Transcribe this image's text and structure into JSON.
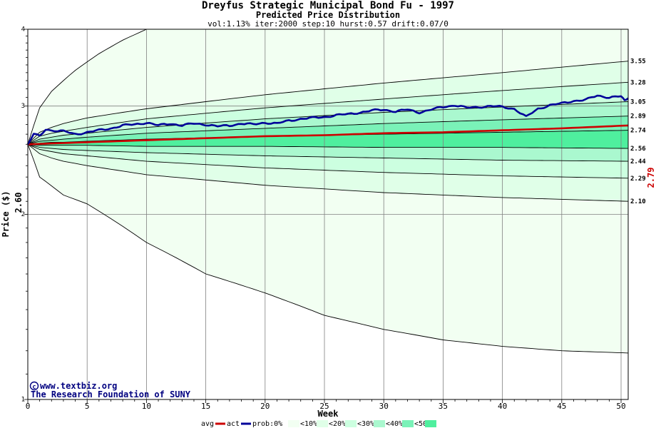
{
  "chart_data": {
    "type": "line",
    "title": "Dreyfus Strategic Municipal Bond Fu - 1997",
    "subtitle": "Predicted Price Distribution",
    "params": "vol:1.13% iter:2000 step:10 hurst:0.57 drift:0.07/0",
    "xlabel": "Week",
    "ylabel": "Price ($)",
    "y_scale": "log",
    "xlim": [
      0,
      50.6
    ],
    "ylim": [
      1,
      4
    ],
    "x_ticks": [
      0,
      5,
      10,
      15,
      20,
      25,
      30,
      35,
      40,
      45,
      50
    ],
    "y_ticks": [
      1,
      2,
      3,
      4
    ],
    "start_price_label": "2.60",
    "end_avg_label": "2.79",
    "grid": true,
    "colors": {
      "background": "#ffffff",
      "band_outer": "#f2fff2",
      "band_10": "#e0ffe8",
      "band_20": "#ccffe0",
      "band_30": "#aaf8cf",
      "band_40": "#7af2b8",
      "band_50": "#4fef9e",
      "avg_line": "#cc0000",
      "actual_line": "#000099",
      "percentile_line": "#000000",
      "grid_line": "#808080",
      "end_avg_label_color": "#cc0000",
      "credit_text": "#000080"
    },
    "percentile_end_labels": [
      "3.55",
      "3.28",
      "3.05",
      "2.89",
      "2.74",
      "2.56",
      "2.44",
      "2.29",
      "2.10"
    ],
    "percentile_curves": [
      {
        "values_at_week": {
          "1": 2.72,
          "2": 2.77,
          "3": 2.81,
          "5": 2.87,
          "10": 2.97,
          "20": 3.13,
          "30": 3.27,
          "40": 3.4,
          "50.6": 3.55
        }
      },
      {
        "values_at_week": {
          "1": 2.68,
          "2": 2.71,
          "3": 2.73,
          "5": 2.77,
          "10": 2.86,
          "20": 2.98,
          "30": 3.08,
          "40": 3.18,
          "50.6": 3.28
        }
      },
      {
        "values_at_week": {
          "1": 2.65,
          "2": 2.67,
          "3": 2.69,
          "5": 2.71,
          "10": 2.77,
          "20": 2.86,
          "30": 2.93,
          "40": 2.99,
          "50.6": 3.05
        }
      },
      {
        "values_at_week": {
          "1": 2.63,
          "2": 2.64,
          "3": 2.65,
          "5": 2.67,
          "10": 2.71,
          "20": 2.76,
          "30": 2.81,
          "40": 2.85,
          "50.6": 2.89
        }
      },
      {
        "values_at_week": {
          "1": 2.61,
          "2": 2.62,
          "3": 2.62,
          "5": 2.63,
          "10": 2.65,
          "20": 2.68,
          "30": 2.7,
          "40": 2.72,
          "50.6": 2.74
        }
      },
      {
        "values_at_week": {
          "1": 2.59,
          "2": 2.59,
          "3": 2.59,
          "5": 2.59,
          "10": 2.58,
          "20": 2.58,
          "30": 2.57,
          "40": 2.57,
          "50.6": 2.56
        }
      },
      {
        "values_at_week": {
          "1": 2.57,
          "2": 2.56,
          "3": 2.55,
          "5": 2.54,
          "10": 2.52,
          "20": 2.49,
          "30": 2.47,
          "40": 2.45,
          "50.6": 2.44
        }
      },
      {
        "values_at_week": {
          "1": 2.55,
          "2": 2.53,
          "3": 2.51,
          "5": 2.49,
          "10": 2.44,
          "20": 2.38,
          "30": 2.34,
          "40": 2.31,
          "50.6": 2.29
        }
      },
      {
        "values_at_week": {
          "1": 2.51,
          "2": 2.47,
          "3": 2.44,
          "5": 2.4,
          "10": 2.32,
          "20": 2.23,
          "30": 2.17,
          "40": 2.13,
          "50.6": 2.1
        }
      }
    ],
    "outer_upper_curve": {
      "values_at_week": {
        "0": 2.6,
        "1": 2.98,
        "2": 3.17,
        "4": 3.43,
        "6": 3.65,
        "8": 3.84,
        "10": 4.0
      }
    },
    "outer_lower_curve": {
      "values_at_week": {
        "0": 2.6,
        "1": 2.3,
        "3": 2.15,
        "5": 2.08,
        "10": 1.8,
        "15": 1.6,
        "20": 1.49,
        "25": 1.37,
        "30": 1.3,
        "35": 1.25,
        "40": 1.22,
        "45": 1.2,
        "50.6": 1.19
      }
    },
    "series": [
      {
        "name": "avg",
        "values_at_week": {
          "0": 2.6,
          "5": 2.62,
          "10": 2.64,
          "15": 2.66,
          "20": 2.68,
          "25": 2.69,
          "30": 2.71,
          "35": 2.72,
          "40": 2.74,
          "45": 2.76,
          "50.6": 2.79
        }
      },
      {
        "name": "act",
        "values_at_week": {
          "0": 2.6,
          "0.5": 2.7,
          "1": 2.68,
          "1.5": 2.75,
          "2": 2.74,
          "3": 2.73,
          "4": 2.7,
          "5": 2.72,
          "6": 2.74,
          "7": 2.76,
          "8": 2.79,
          "9": 2.8,
          "10": 2.82,
          "11": 2.79,
          "12": 2.81,
          "13": 2.79,
          "14": 2.81,
          "15": 2.8,
          "16": 2.78,
          "17": 2.79,
          "18": 2.81,
          "19": 2.8,
          "20": 2.82,
          "21": 2.81,
          "22": 2.84,
          "23": 2.86,
          "24": 2.87,
          "25": 2.88,
          "26": 2.9,
          "27": 2.91,
          "28": 2.93,
          "29": 2.95,
          "30": 2.96,
          "31": 2.94,
          "32": 2.96,
          "33": 2.93,
          "34": 2.96,
          "35": 2.99,
          "36": 3.01,
          "37": 2.98,
          "38": 2.99,
          "39": 3.0,
          "40": 2.99,
          "41": 2.97,
          "42": 2.88,
          "43": 2.97,
          "44": 3.01,
          "45": 3.03,
          "46": 3.06,
          "47": 3.07,
          "48": 3.12,
          "49": 3.1,
          "50": 3.11,
          "50.3": 3.06,
          "50.6": 3.1
        }
      }
    ],
    "legend": [
      "avg",
      "act",
      "prob:0%",
      "<10%",
      "<20%",
      "<30%",
      "<40%",
      "<50%"
    ]
  },
  "credits": {
    "copyright_symbol": "©",
    "url": "www.textbiz.org",
    "org": "The Research Foundation of SUNY"
  }
}
